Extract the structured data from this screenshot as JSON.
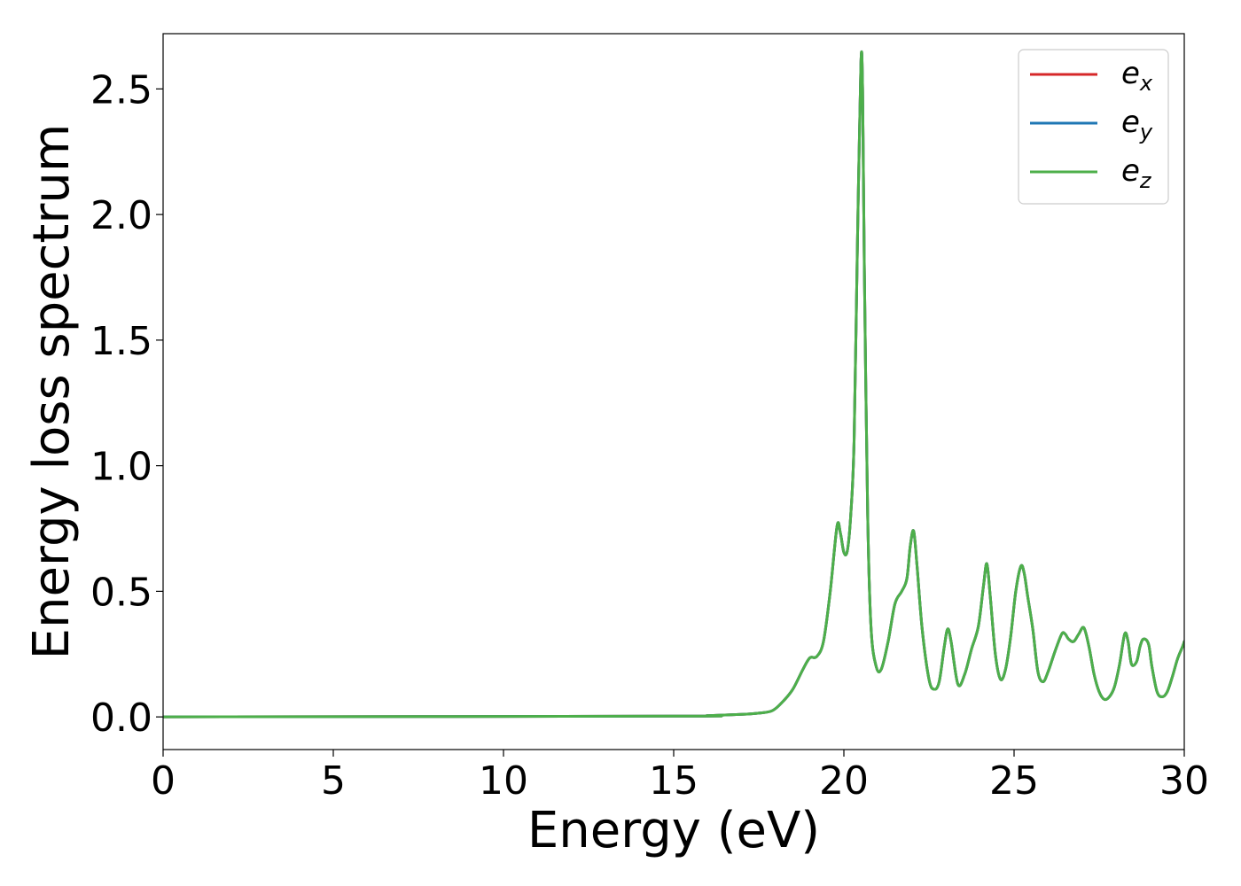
{
  "chart_data": {
    "type": "line",
    "xlabel": "Energy (eV)",
    "ylabel": "Energy loss spectrum",
    "xlim": [
      0,
      30
    ],
    "ylim": [
      -0.13,
      2.72
    ],
    "xticks": [
      0,
      5,
      10,
      15,
      20,
      25,
      30
    ],
    "xtick_labels": [
      "0",
      "5",
      "10",
      "15",
      "20",
      "25",
      "30"
    ],
    "yticks": [
      0.0,
      0.5,
      1.0,
      1.5,
      2.0,
      2.5
    ],
    "ytick_labels": [
      "0.0",
      "0.5",
      "1.0",
      "1.5",
      "2.0",
      "2.5"
    ],
    "grid": false,
    "legend_position": "top-right",
    "x": [
      0,
      15,
      16,
      17,
      17.5,
      17.9,
      18.2,
      18.5,
      18.8,
      19.0,
      19.2,
      19.4,
      19.6,
      19.8,
      19.9,
      20.0,
      20.1,
      20.2,
      20.3,
      20.4,
      20.5,
      20.55,
      20.6,
      20.7,
      20.8,
      20.95,
      21.1,
      21.3,
      21.5,
      21.7,
      21.85,
      21.95,
      22.05,
      22.15,
      22.3,
      22.5,
      22.65,
      22.8,
      22.95,
      23.05,
      23.15,
      23.35,
      23.55,
      23.75,
      23.95,
      24.1,
      24.2,
      24.3,
      24.45,
      24.6,
      24.75,
      24.9,
      25.05,
      25.2,
      25.3,
      25.4,
      25.55,
      25.7,
      25.85,
      26.0,
      26.2,
      26.4,
      26.5,
      26.6,
      26.75,
      26.9,
      27.05,
      27.2,
      27.35,
      27.5,
      27.65,
      27.8,
      27.95,
      28.1,
      28.25,
      28.35,
      28.45,
      28.6,
      28.7,
      28.8,
      28.95,
      29.05,
      29.2,
      29.35,
      29.5,
      29.65,
      29.8,
      29.95,
      30.0
    ],
    "series": [
      {
        "name": "e_x",
        "label_base": "e",
        "label_sub": "x",
        "color": "#d62728",
        "y": [
          0.0,
          0.003,
          0.005,
          0.01,
          0.015,
          0.025,
          0.06,
          0.11,
          0.19,
          0.235,
          0.24,
          0.3,
          0.5,
          0.76,
          0.73,
          0.655,
          0.66,
          0.8,
          1.1,
          1.9,
          2.6,
          2.5,
          1.8,
          0.8,
          0.35,
          0.2,
          0.19,
          0.3,
          0.45,
          0.5,
          0.55,
          0.68,
          0.74,
          0.6,
          0.35,
          0.15,
          0.11,
          0.14,
          0.28,
          0.35,
          0.3,
          0.13,
          0.17,
          0.27,
          0.36,
          0.52,
          0.61,
          0.48,
          0.25,
          0.15,
          0.19,
          0.32,
          0.5,
          0.6,
          0.57,
          0.48,
          0.35,
          0.18,
          0.14,
          0.18,
          0.26,
          0.33,
          0.33,
          0.31,
          0.3,
          0.33,
          0.355,
          0.28,
          0.17,
          0.1,
          0.07,
          0.08,
          0.12,
          0.21,
          0.33,
          0.3,
          0.21,
          0.22,
          0.28,
          0.31,
          0.29,
          0.2,
          0.1,
          0.08,
          0.1,
          0.16,
          0.23,
          0.28,
          0.3
        ]
      },
      {
        "name": "e_y",
        "label_base": "e",
        "label_sub": "y",
        "color": "#1f77b4",
        "y": [
          0.0,
          0.003,
          0.005,
          0.01,
          0.015,
          0.025,
          0.06,
          0.11,
          0.19,
          0.235,
          0.24,
          0.3,
          0.5,
          0.76,
          0.73,
          0.655,
          0.66,
          0.8,
          1.1,
          1.9,
          2.6,
          2.5,
          1.8,
          0.8,
          0.35,
          0.2,
          0.19,
          0.3,
          0.45,
          0.5,
          0.55,
          0.68,
          0.74,
          0.6,
          0.35,
          0.15,
          0.11,
          0.14,
          0.28,
          0.35,
          0.3,
          0.13,
          0.17,
          0.27,
          0.36,
          0.52,
          0.61,
          0.48,
          0.25,
          0.15,
          0.19,
          0.32,
          0.5,
          0.6,
          0.57,
          0.48,
          0.35,
          0.18,
          0.14,
          0.18,
          0.26,
          0.33,
          0.33,
          0.31,
          0.3,
          0.33,
          0.355,
          0.28,
          0.17,
          0.1,
          0.07,
          0.08,
          0.12,
          0.21,
          0.33,
          0.3,
          0.21,
          0.22,
          0.28,
          0.31,
          0.29,
          0.2,
          0.1,
          0.08,
          0.1,
          0.16,
          0.23,
          0.28,
          0.3
        ]
      },
      {
        "name": "e_z",
        "label_base": "e",
        "label_sub": "z",
        "color": "#4daf4a",
        "y": [
          0.0,
          0.003,
          0.005,
          0.01,
          0.015,
          0.025,
          0.06,
          0.11,
          0.19,
          0.235,
          0.24,
          0.3,
          0.5,
          0.76,
          0.73,
          0.655,
          0.66,
          0.8,
          1.1,
          1.9,
          2.6,
          2.5,
          1.8,
          0.8,
          0.35,
          0.2,
          0.19,
          0.3,
          0.45,
          0.5,
          0.55,
          0.68,
          0.74,
          0.6,
          0.35,
          0.15,
          0.11,
          0.14,
          0.28,
          0.35,
          0.3,
          0.13,
          0.17,
          0.27,
          0.36,
          0.52,
          0.61,
          0.48,
          0.25,
          0.15,
          0.19,
          0.32,
          0.5,
          0.6,
          0.57,
          0.48,
          0.35,
          0.18,
          0.14,
          0.18,
          0.26,
          0.33,
          0.33,
          0.31,
          0.3,
          0.33,
          0.355,
          0.28,
          0.17,
          0.1,
          0.07,
          0.08,
          0.12,
          0.21,
          0.33,
          0.3,
          0.21,
          0.22,
          0.28,
          0.31,
          0.29,
          0.2,
          0.1,
          0.08,
          0.1,
          0.16,
          0.23,
          0.28,
          0.3
        ]
      }
    ]
  }
}
